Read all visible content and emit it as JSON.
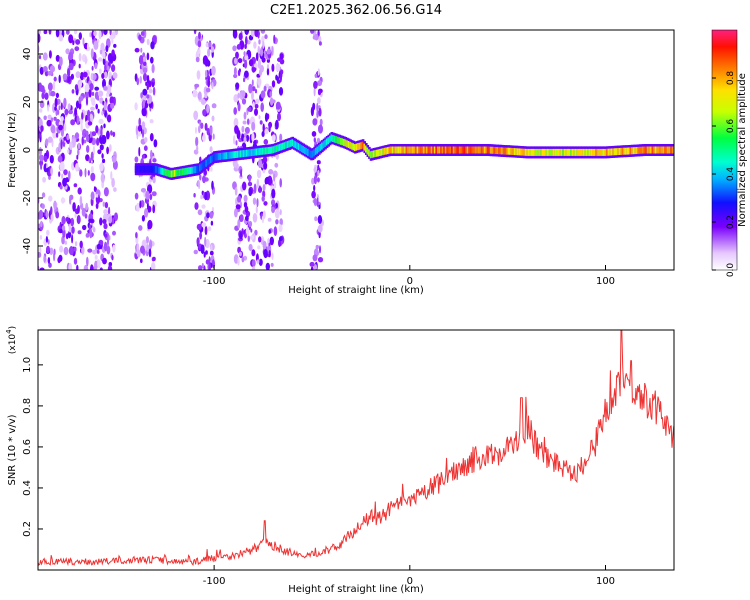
{
  "title": "C2E1.2025.362.06.56.G14",
  "chart_data": [
    {
      "type": "heatmap",
      "title": "C2E1.2025.362.06.56.G14",
      "xlabel": "Height of straight line (km)",
      "ylabel": "Frequency (Hz)",
      "xlim": [
        -190,
        135
      ],
      "ylim": [
        -50,
        50
      ],
      "x_ticks": [
        -100,
        0,
        100
      ],
      "y_ticks": [
        -40,
        -20,
        0,
        20,
        40
      ],
      "ridge": {
        "x": [
          -140,
          -130,
          -122,
          -115,
          -108,
          -100,
          -90,
          -80,
          -70,
          -60,
          -50,
          -40,
          -33,
          -28,
          -24,
          -20,
          -15,
          -10,
          0,
          20,
          40,
          60,
          80,
          100,
          120,
          135
        ],
        "freq": [
          -8,
          -8,
          -10,
          -9,
          -8,
          -3,
          -2,
          -1,
          0,
          3,
          -2,
          5,
          3,
          1,
          2,
          -2,
          -1,
          0,
          0,
          0,
          0,
          -1,
          -1,
          -1,
          0,
          0
        ],
        "amp": [
          0.25,
          0.3,
          0.7,
          0.55,
          0.35,
          0.35,
          0.45,
          0.45,
          0.5,
          0.45,
          0.35,
          0.5,
          0.7,
          0.75,
          0.85,
          0.6,
          0.7,
          0.8,
          0.85,
          0.9,
          0.9,
          0.75,
          0.7,
          0.8,
          0.85,
          0.85
        ]
      },
      "noise_bands": [
        [
          -190,
          -150
        ],
        [
          -140,
          -130
        ],
        [
          -110,
          -100
        ],
        [
          -90,
          -65
        ],
        [
          -50,
          -45
        ]
      ]
    },
    {
      "type": "colorbar",
      "label": "Normalized spectral amplitude",
      "ticks": [
        "0.0",
        "0.2",
        "0.4",
        "0.6",
        "0.8"
      ],
      "range": [
        0,
        1
      ]
    },
    {
      "type": "line",
      "xlabel": "Height of straight line (km)",
      "ylabel": "SNR (10 * v/v)",
      "y_multiplier": "(x10",
      "y_exponent": "4",
      "xlim": [
        -190,
        135
      ],
      "ylim": [
        0,
        1.17
      ],
      "x_ticks": [
        -100,
        0,
        100
      ],
      "y_ticks": [
        "0.2",
        "0.4",
        "0.6",
        "0.8",
        "1.0"
      ],
      "series": [
        {
          "name": "SNR",
          "color": "#ee3333",
          "x": [
            -190,
            -160,
            -140,
            -130,
            -120,
            -110,
            -100,
            -90,
            -80,
            -75,
            -70,
            -65,
            -60,
            -55,
            -50,
            -45,
            -40,
            -35,
            -30,
            -25,
            -20,
            -15,
            -10,
            -5,
            0,
            5,
            10,
            15,
            20,
            25,
            30,
            35,
            40,
            45,
            50,
            55,
            60,
            65,
            70,
            75,
            80,
            85,
            90,
            95,
            100,
            105,
            110,
            113,
            118,
            125,
            130,
            135
          ],
          "y": [
            0.04,
            0.04,
            0.05,
            0.05,
            0.04,
            0.04,
            0.06,
            0.07,
            0.1,
            0.13,
            0.12,
            0.1,
            0.08,
            0.06,
            0.08,
            0.09,
            0.1,
            0.13,
            0.18,
            0.22,
            0.26,
            0.25,
            0.3,
            0.32,
            0.33,
            0.36,
            0.4,
            0.42,
            0.46,
            0.5,
            0.52,
            0.55,
            0.55,
            0.57,
            0.6,
            0.62,
            0.7,
            0.6,
            0.55,
            0.52,
            0.5,
            0.48,
            0.52,
            0.62,
            0.78,
            0.88,
            0.95,
            0.9,
            0.85,
            0.8,
            0.73,
            0.65
          ],
          "peaks": [
            [
              -74,
              0.24
            ],
            [
              57,
              0.84
            ],
            [
              108,
              1.17
            ],
            [
              113,
              1.02
            ]
          ]
        }
      ]
    }
  ]
}
